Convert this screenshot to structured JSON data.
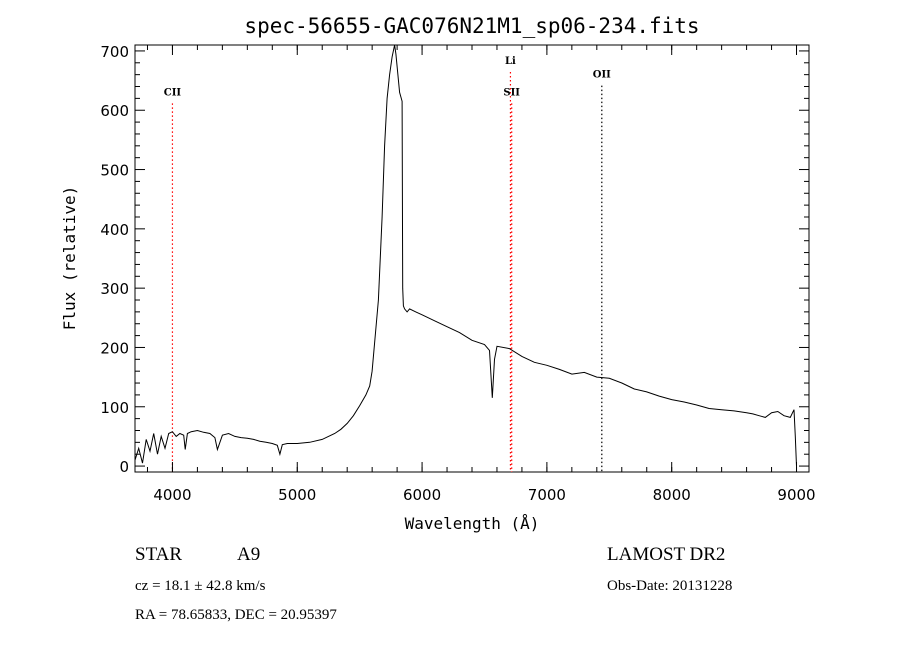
{
  "chart_data": {
    "type": "line",
    "title": "spec-56655-GAC076N21M1_sp06-234.fits",
    "xlabel": "Wavelength (Å)",
    "ylabel": "Flux (relative)",
    "xlim": [
      3700,
      9100
    ],
    "ylim": [
      -10,
      710
    ],
    "xticks": [
      4000,
      5000,
      6000,
      7000,
      8000,
      9000
    ],
    "yticks": [
      0,
      100,
      200,
      300,
      400,
      500,
      600,
      700
    ],
    "grid": false,
    "series": [
      {
        "x": [
          3700,
          3730,
          3760,
          3790,
          3820,
          3850,
          3880,
          3910,
          3940,
          3970,
          4000,
          4030,
          4060,
          4090,
          4102,
          4120,
          4150,
          4200,
          4250,
          4300,
          4340,
          4360,
          4400,
          4450,
          4500,
          4550,
          4600,
          4650,
          4700,
          4750,
          4800,
          4840,
          4861,
          4880,
          4920,
          4960,
          5000,
          5100,
          5200,
          5300,
          5350,
          5400,
          5450,
          5500,
          5550,
          5580,
          5600,
          5650,
          5680,
          5700,
          5720,
          5740,
          5760,
          5780,
          5790,
          5820,
          5840,
          5845,
          5850,
          5860,
          5880,
          5900,
          5950,
          6000,
          6100,
          6200,
          6300,
          6400,
          6500,
          6540,
          6563,
          6580,
          6600,
          6700,
          6800,
          6900,
          7000,
          7100,
          7200,
          7300,
          7400,
          7500,
          7600,
          7700,
          7800,
          7900,
          8000,
          8100,
          8200,
          8300,
          8400,
          8500,
          8600,
          8650,
          8700,
          8750,
          8800,
          8850,
          8900,
          8950,
          8980,
          8990,
          9000
        ],
        "y": [
          10,
          30,
          5,
          45,
          25,
          55,
          20,
          50,
          30,
          55,
          58,
          50,
          55,
          52,
          28,
          55,
          58,
          60,
          57,
          55,
          48,
          28,
          52,
          55,
          50,
          48,
          47,
          45,
          42,
          40,
          38,
          35,
          20,
          36,
          38,
          38,
          38,
          40,
          45,
          55,
          62,
          72,
          85,
          102,
          120,
          135,
          160,
          280,
          420,
          540,
          620,
          660,
          690,
          710,
          695,
          630,
          615,
          300,
          270,
          265,
          260,
          265,
          260,
          255,
          245,
          235,
          225,
          212,
          205,
          195,
          115,
          180,
          202,
          198,
          185,
          175,
          170,
          163,
          155,
          158,
          150,
          148,
          140,
          130,
          125,
          118,
          112,
          108,
          103,
          97,
          95,
          93,
          90,
          88,
          85,
          82,
          90,
          92,
          85,
          82,
          95,
          50,
          0
        ]
      }
    ],
    "line_markers": [
      {
        "label": "CII",
        "x": 4000,
        "color": "#ff0000",
        "label_y": 625
      },
      {
        "label": "Li",
        "x": 6708,
        "color": "#ff0000",
        "label_y": 678
      },
      {
        "label": "SII",
        "x": 6718,
        "color": "#ff0000",
        "label_y": 625
      },
      {
        "label": "OII",
        "x": 7440,
        "color": "#000000",
        "label_y": 655
      }
    ]
  },
  "info": {
    "object_class": "STAR",
    "subclass": "A9",
    "survey": "LAMOST DR2",
    "redshift": "cz = 18.1 ± 42.8 km/s",
    "obs_date": "Obs-Date: 20131228",
    "coords": "RA =  78.65833, DEC =  20.95397"
  }
}
